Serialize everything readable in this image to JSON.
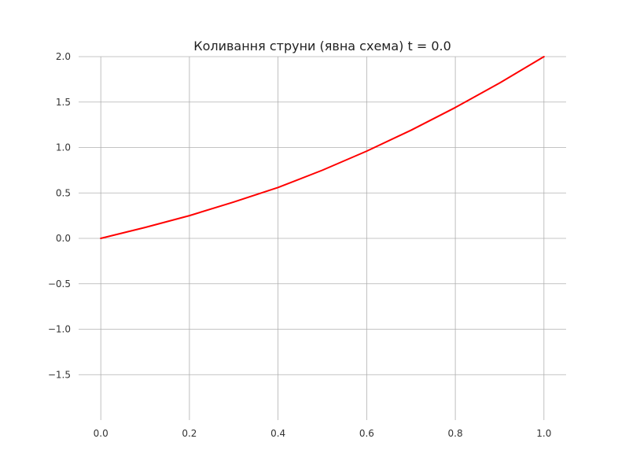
{
  "chart_data": {
    "type": "line",
    "title": "Коливання струни (явна схема) t = 0.0",
    "xlabel": "",
    "ylabel": "",
    "xlim": [
      -0.05,
      1.05
    ],
    "ylim": [
      -2.0,
      2.0
    ],
    "grid": true,
    "x_ticks": [
      0.0,
      0.2,
      0.4,
      0.6,
      0.8,
      1.0
    ],
    "x_tick_labels": [
      "0.0",
      "0.2",
      "0.4",
      "0.6",
      "0.8",
      "1.0"
    ],
    "y_ticks": [
      2.0,
      1.5,
      1.0,
      0.5,
      0.0,
      -0.5,
      -1.0,
      -1.5
    ],
    "y_tick_labels": [
      "2.0",
      "1.5",
      "1.0",
      "0.5",
      "0.0",
      "−0.5",
      "−1.0",
      "−1.5"
    ],
    "series": [
      {
        "color": "#ff0000",
        "x": [
          0.0,
          0.1,
          0.2,
          0.3,
          0.4,
          0.5,
          0.6,
          0.7,
          0.8,
          0.9,
          1.0
        ],
        "y": [
          0.0,
          0.12,
          0.25,
          0.4,
          0.56,
          0.75,
          0.96,
          1.19,
          1.44,
          1.71,
          2.0
        ]
      }
    ]
  }
}
